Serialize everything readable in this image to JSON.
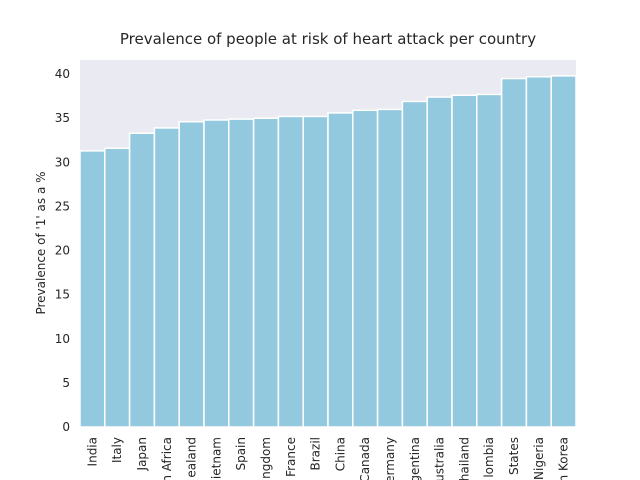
{
  "chart_data": {
    "type": "bar",
    "title": "Prevalence of people at risk of heart attack per country",
    "y_label": "Prevalence of '1' as a %",
    "categories": [
      "India",
      "Italy",
      "Japan",
      "h Africa",
      "ealand",
      "ietnam",
      "Spain",
      "ngdom",
      "France",
      "Brazil",
      "China",
      "Canada",
      "ermany",
      "gentina",
      "ustralia",
      "hailand",
      "lombia",
      "States",
      "Nigeria",
      "h Korea"
    ],
    "values": [
      31.3,
      31.6,
      33.3,
      33.9,
      34.6,
      34.8,
      34.9,
      35.0,
      35.2,
      35.2,
      35.6,
      35.9,
      36.0,
      36.9,
      37.4,
      37.6,
      37.7,
      39.5,
      39.7,
      39.8
    ],
    "color": "#92c9de",
    "ylim": [
      0,
      41.6
    ],
    "yticks": [
      0,
      5,
      10,
      15,
      20,
      25,
      30,
      35,
      40
    ],
    "grid": false
  }
}
